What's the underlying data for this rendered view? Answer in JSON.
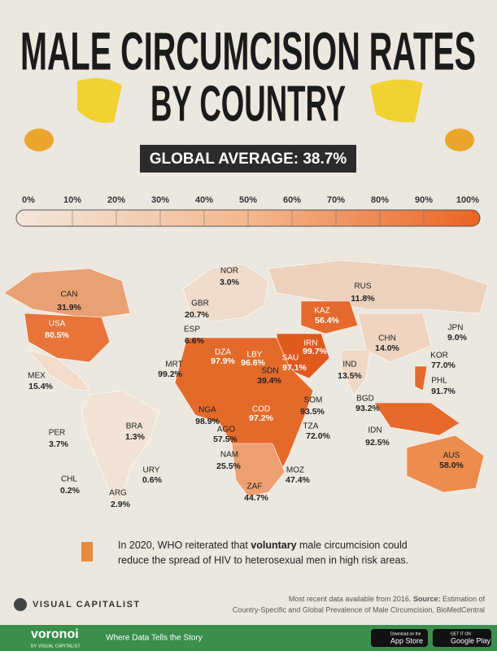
{
  "header": {
    "title_line1": "MALE CIRCUMCISION RATES",
    "title_line2": "BY COUNTRY",
    "global_average": "GLOBAL AVERAGE: 38.7%"
  },
  "scale": {
    "labels": [
      "0%",
      "10%",
      "20%",
      "30%",
      "40%",
      "50%",
      "60%",
      "70%",
      "80%",
      "90%",
      "100%"
    ]
  },
  "countries": [
    {
      "code": "CAN",
      "value": "31.9%"
    },
    {
      "code": "NOR",
      "value": "3.0%"
    },
    {
      "code": "RUS",
      "value": "11.8%"
    },
    {
      "code": "GBR",
      "value": "20.7%"
    },
    {
      "code": "USA",
      "value": "80.5%"
    },
    {
      "code": "KAZ",
      "value": "56.4%"
    },
    {
      "code": "ESP",
      "value": "6.6%"
    },
    {
      "code": "JPN",
      "value": "9.0%"
    },
    {
      "code": "DZA",
      "value": "97.9%"
    },
    {
      "code": "LBY",
      "value": "96.6%"
    },
    {
      "code": "IRN",
      "value": "99.7%"
    },
    {
      "code": "SAU",
      "value": "97.1%"
    },
    {
      "code": "CHN",
      "value": "14.0%"
    },
    {
      "code": "KOR",
      "value": "77.0%"
    },
    {
      "code": "MRT",
      "value": "99.2%"
    },
    {
      "code": "IND",
      "value": "13.5%"
    },
    {
      "code": "SDN",
      "value": "39.4%"
    },
    {
      "code": "MEX",
      "value": "15.4%"
    },
    {
      "code": "PHL",
      "value": "91.7%"
    },
    {
      "code": "BGD",
      "value": "93.2%"
    },
    {
      "code": "SOM",
      "value": "93.5%"
    },
    {
      "code": "NGA",
      "value": "98.9%"
    },
    {
      "code": "COD",
      "value": "97.2%"
    },
    {
      "code": "AGO",
      "value": "57.5%"
    },
    {
      "code": "TZA",
      "value": "72.0%"
    },
    {
      "code": "IDN",
      "value": "92.5%"
    },
    {
      "code": "BRA",
      "value": "1.3%"
    },
    {
      "code": "PER",
      "value": "3.7%"
    },
    {
      "code": "NAM",
      "value": "25.5%"
    },
    {
      "code": "AUS",
      "value": "58.0%"
    },
    {
      "code": "MOZ",
      "value": "47.4%"
    },
    {
      "code": "URY",
      "value": "0.6%"
    },
    {
      "code": "CHL",
      "value": "0.2%"
    },
    {
      "code": "ZAF",
      "value": "44.7%"
    },
    {
      "code": "ARG",
      "value": "2.9%"
    }
  ],
  "note": {
    "part1": "In 2020, WHO reiterated that ",
    "bold": "voluntary",
    "part2": " male circumcision could",
    "line2": "reduce the spread of HIV to heterosexual men in high risk areas."
  },
  "source": {
    "line1_a": "Most recent data available from 2016. ",
    "line1_label": "Source:",
    "line1_b": " Estimation of",
    "line2": "Country-Specific and Global Prevalence of Male Circumcision, BioMedCentral"
  },
  "brand": {
    "logo": "VISUAL CAPITALIST",
    "voronoi": "voronoi",
    "voronoi_sub": "BY VISUAL CAPITALIST",
    "tagline": "Where Data Tells the Story",
    "appstore_small": "Download on the",
    "appstore": "App Store",
    "googleplay_small": "GET IT ON",
    "googleplay": "Google Play"
  }
}
